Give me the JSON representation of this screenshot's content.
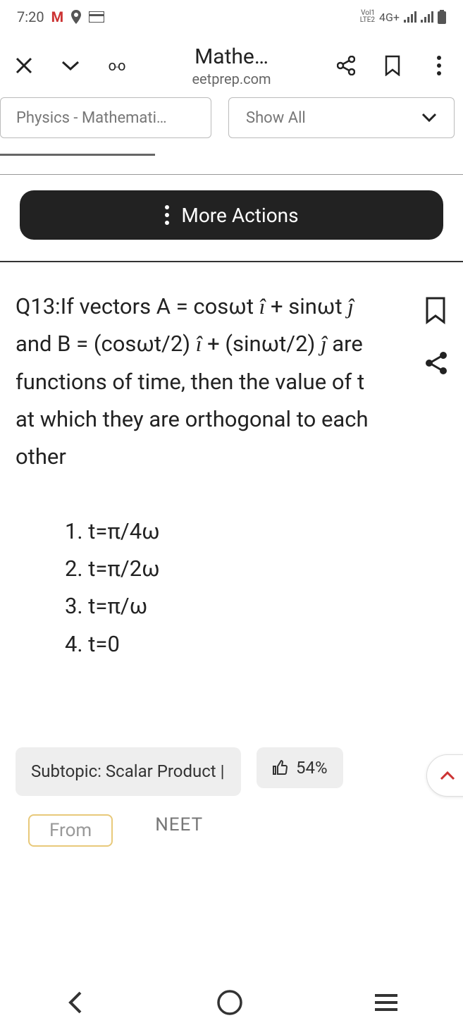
{
  "status": {
    "time": "7:20",
    "network_label": "4G+",
    "lte_small1": "Vol1",
    "lte_small2": "LTE2"
  },
  "toolbar": {
    "title": "Mathe…",
    "url": "eetprep.com"
  },
  "filters": {
    "physics_label": "Physics - Mathemati…",
    "showall_label": "Show All"
  },
  "more_actions_label": "More Actions",
  "question": {
    "number": "Q13:",
    "body_html": "If vectors A = cosωt <span class='ihat'>î</span> + sinωt <span class='jhat'>ĵ</span> and B = (cosωt/2) <span class='ihat'>î</span> + (sinωt/2) <span class='jhat'>ĵ</span> are functions of time, then the value of t at which they are orthogonal to each other",
    "options": [
      "1. t=π/4ω",
      "2. t=π/2ω",
      "3. t=π/ω",
      "4. t=0"
    ]
  },
  "bottom": {
    "subtopic": "Subtopic:  Scalar Product |",
    "rating": "54%",
    "from_label": "From",
    "neet_label": "NEET"
  },
  "colors": {
    "dark_pill": "#222222",
    "chip_bg": "#eeeeee",
    "chip_border": "#bbbbbb",
    "text_muted": "#777777",
    "from_border": "#e8c97a"
  }
}
